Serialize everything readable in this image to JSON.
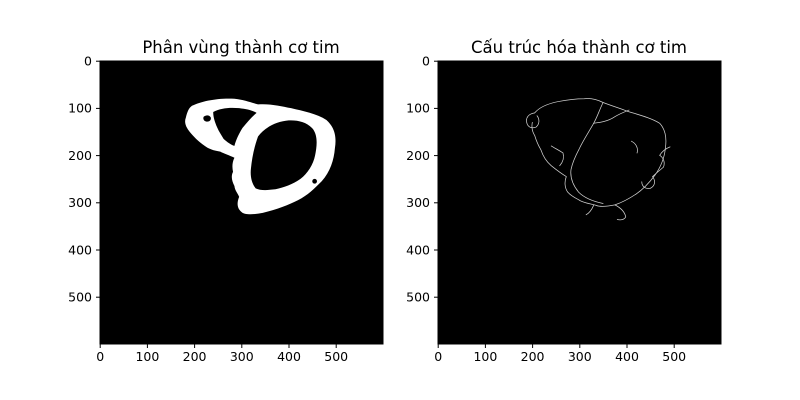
{
  "chart_data": [
    {
      "type": "heatmap",
      "title": "Phân vùng thành cơ tim",
      "xlim": [
        0,
        600
      ],
      "ylim": [
        600,
        0
      ],
      "xticks": [
        "0",
        "100",
        "200",
        "300",
        "400",
        "500"
      ],
      "yticks": [
        "0",
        "100",
        "200",
        "300",
        "400",
        "500"
      ],
      "colormap": [
        "#000000",
        "#ffffff"
      ],
      "grid": false
    },
    {
      "type": "heatmap",
      "title": "Cấu trúc hóa thành cơ tim",
      "xlim": [
        0,
        600
      ],
      "ylim": [
        600,
        0
      ],
      "xticks": [
        "0",
        "100",
        "200",
        "300",
        "400",
        "500"
      ],
      "yticks": [
        "0",
        "100",
        "200",
        "300",
        "400",
        "500"
      ],
      "colormap": [
        "#000000",
        "#ffffff"
      ],
      "grid": false
    }
  ]
}
